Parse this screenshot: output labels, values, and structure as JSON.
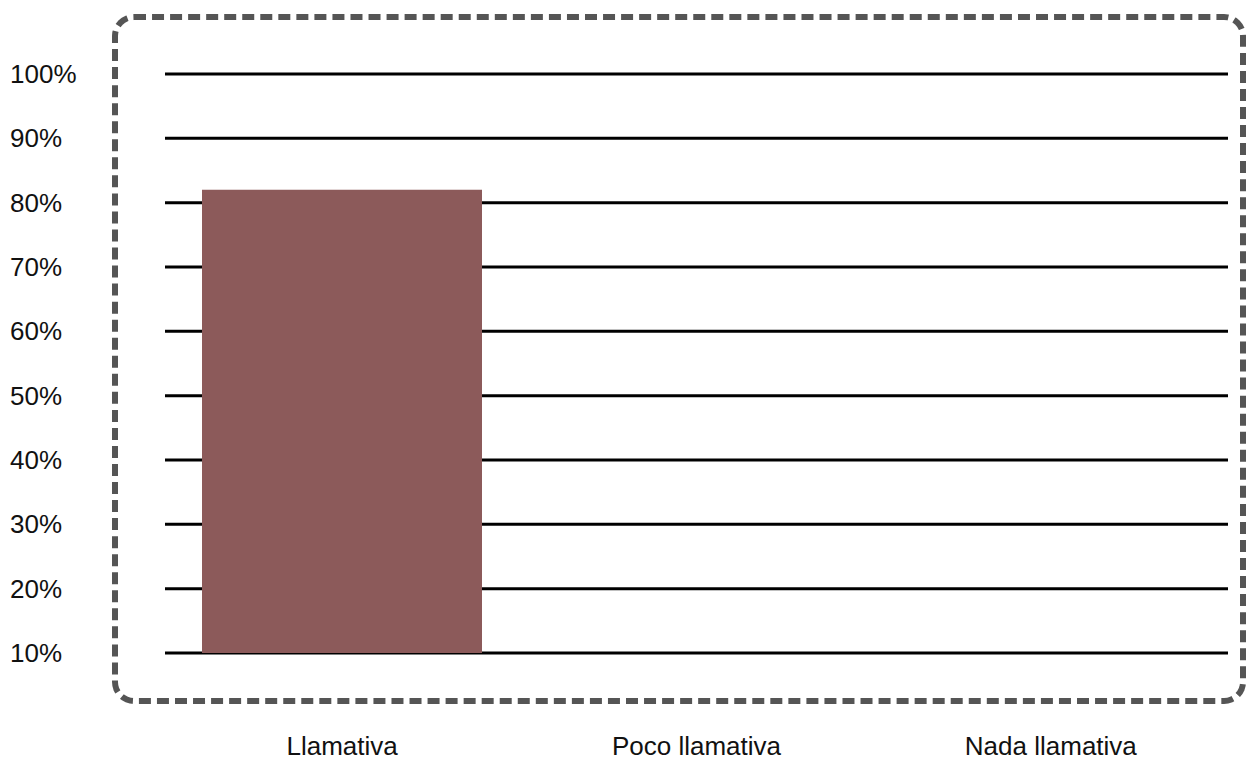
{
  "chart_data": {
    "type": "bar",
    "categories": [
      "Llamativa",
      "Poco llamativa",
      "Nada llamativa"
    ],
    "values": [
      82,
      null,
      null
    ],
    "color": "#8c5a5a",
    "ylim": [
      10,
      100
    ],
    "yticks": [
      {
        "value": 10,
        "label": "10%"
      },
      {
        "value": 20,
        "label": "20%"
      },
      {
        "value": 30,
        "label": "30%"
      },
      {
        "value": 40,
        "label": "40%"
      },
      {
        "value": 50,
        "label": "50%"
      },
      {
        "value": 60,
        "label": "60%"
      },
      {
        "value": 70,
        "label": "70%"
      },
      {
        "value": 80,
        "label": "80%"
      },
      {
        "value": 90,
        "label": "90%"
      },
      {
        "value": 100,
        "label": "100%"
      }
    ],
    "grid": true
  }
}
